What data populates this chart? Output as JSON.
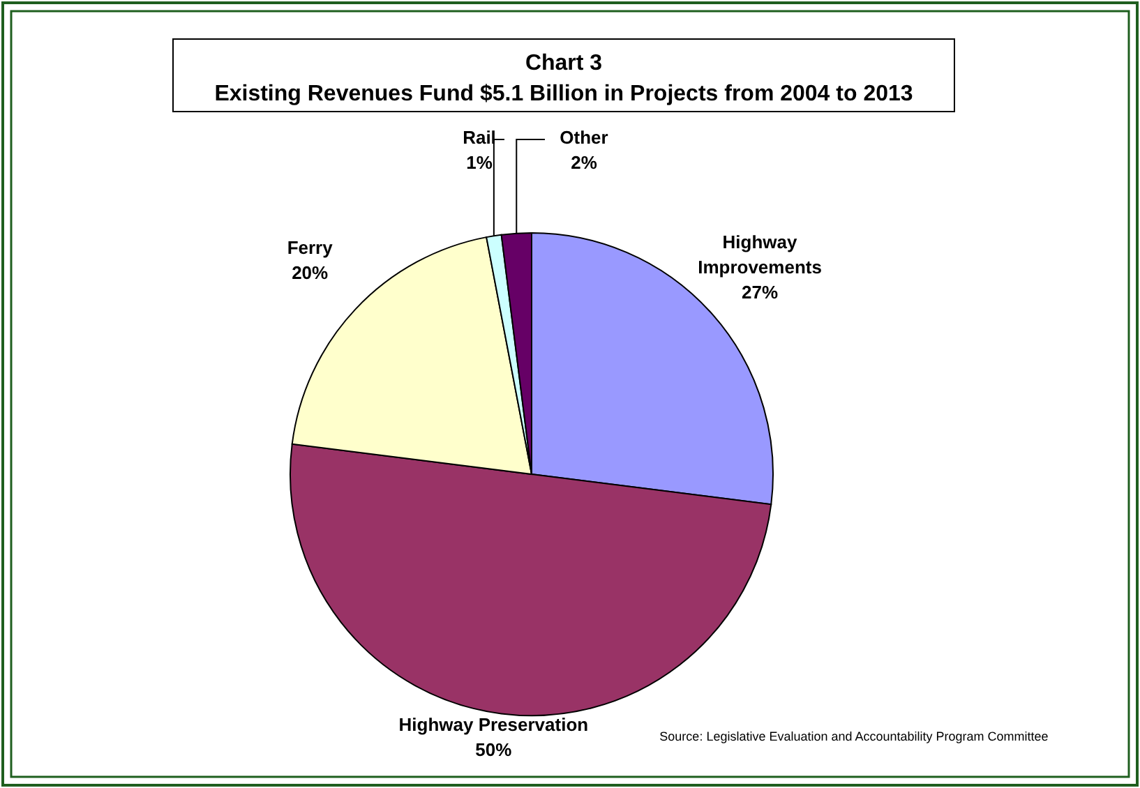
{
  "chart_data": {
    "type": "pie",
    "title": "Chart 3",
    "subtitle": "Existing Revenues Fund $5.1 Billion in Projects from 2004 to 2013",
    "categories": [
      "Highway Improvements",
      "Highway Preservation",
      "Ferry",
      "Rail",
      "Other"
    ],
    "values": [
      27,
      50,
      20,
      1,
      2
    ],
    "colors": [
      "#9999ff",
      "#993366",
      "#ffffcc",
      "#ccffff",
      "#660066"
    ],
    "value_labels": [
      "27%",
      "50%",
      "20%",
      "1%",
      "2%"
    ],
    "annotations": [
      "Source: Legislative Evaluation and Accountability Program Committee"
    ]
  }
}
